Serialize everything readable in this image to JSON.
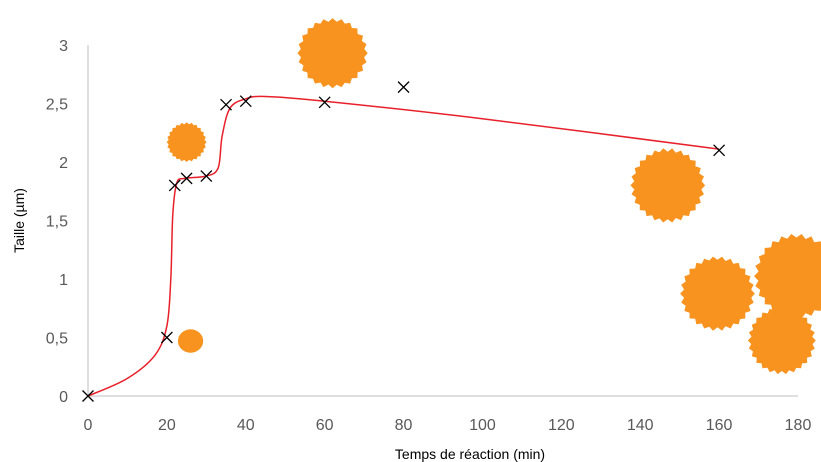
{
  "colors": {
    "curve": "#e8202a",
    "marker": "#000000",
    "particle": "#f7931e",
    "axis": "#bfbfbf",
    "tick_text": "#595959"
  },
  "chart_data": {
    "type": "scatter",
    "title": "",
    "xlabel": "Temps de réaction (min)",
    "ylabel": "Taille (µm)",
    "xlim": [
      0,
      180
    ],
    "ylim": [
      0,
      3
    ],
    "x_ticks": [
      0,
      20,
      40,
      60,
      80,
      100,
      120,
      140,
      160,
      180
    ],
    "x_tick_labels": [
      "0",
      "20",
      "40",
      "60",
      "80",
      "100",
      "120",
      "140",
      "160",
      "180"
    ],
    "y_ticks": [
      0,
      0.5,
      1,
      1.5,
      2,
      2.5,
      3
    ],
    "y_tick_labels": [
      "0",
      "0,5",
      "1",
      "1,5",
      "2",
      "2,5",
      "3"
    ],
    "grid": false,
    "legend": "none",
    "series": [
      {
        "marker": "x",
        "x": [
          0,
          20,
          22,
          25,
          30,
          35,
          40,
          60,
          80,
          160
        ],
        "y": [
          0,
          0.5,
          1.8,
          1.86,
          1.88,
          2.49,
          2.52,
          2.51,
          2.64,
          2.1
        ]
      }
    ],
    "trend_curve": {
      "style": "smooth",
      "x": [
        0,
        10,
        17,
        20,
        21,
        21.5,
        22.5,
        24.5,
        30,
        33,
        34,
        36,
        40,
        45,
        60,
        100,
        160
      ],
      "y": [
        0,
        0.15,
        0.35,
        0.6,
        1.0,
        1.55,
        1.82,
        1.86,
        1.88,
        1.95,
        2.22,
        2.46,
        2.54,
        2.56,
        2.52,
        2.37,
        2.11
      ]
    },
    "annotations": [
      {
        "kind": "particle-smooth",
        "x": 26,
        "y": 0.47,
        "size": 0.1
      },
      {
        "kind": "particle-spiky",
        "x": 25,
        "y": 2.17,
        "size": 0.17
      },
      {
        "kind": "particle-spiky",
        "x": 62,
        "y": 2.93,
        "size": 0.3
      },
      {
        "kind": "particle-cluster",
        "x": 167,
        "y": 1.2,
        "size": 0.5
      }
    ]
  }
}
